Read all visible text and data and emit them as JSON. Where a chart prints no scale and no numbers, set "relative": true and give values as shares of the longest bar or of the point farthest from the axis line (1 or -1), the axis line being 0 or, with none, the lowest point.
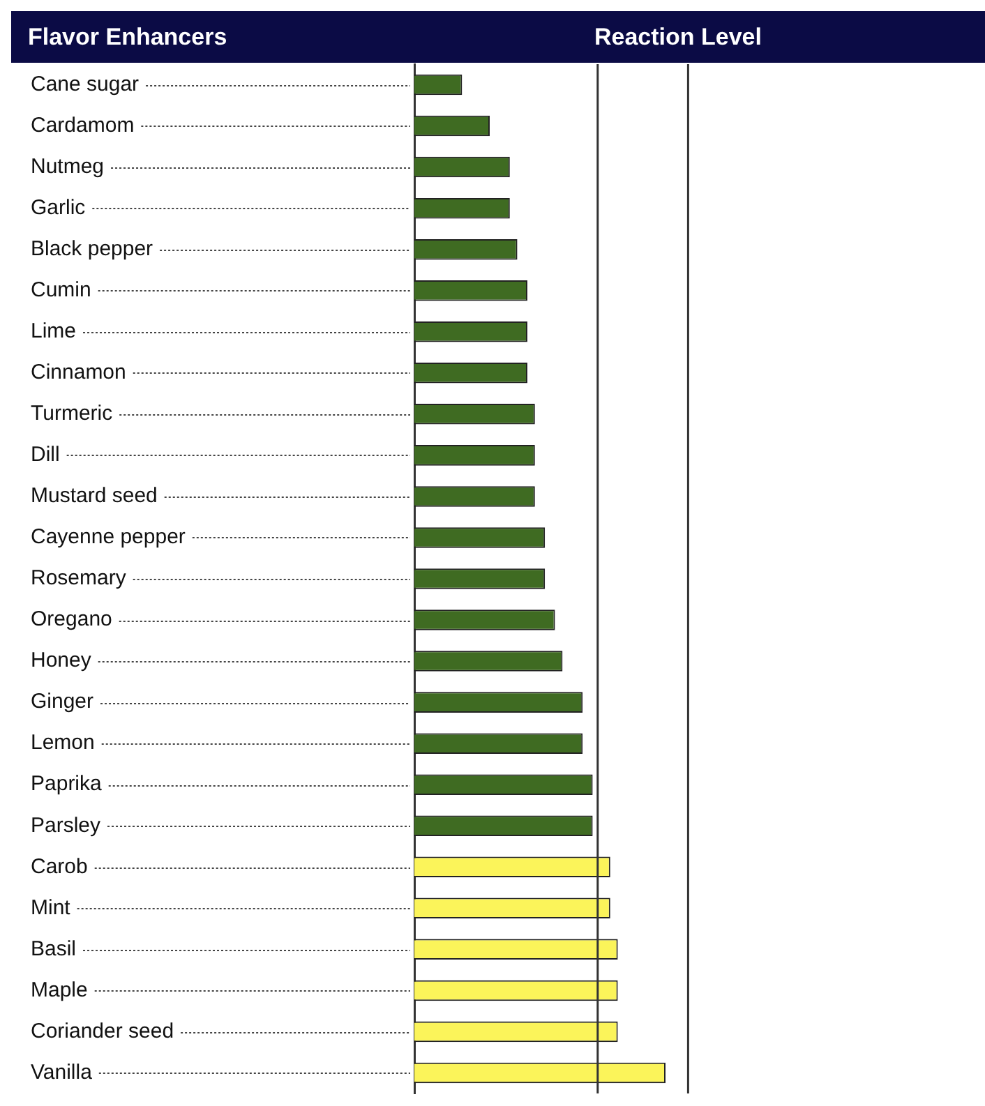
{
  "chart_data": {
    "type": "bar",
    "orientation": "horizontal",
    "relative": true,
    "xlabel": "Reaction Level",
    "ylabel": "Flavor Enhancers",
    "categories": [
      "Cane sugar",
      "Cardamom",
      "Nutmeg",
      "Garlic",
      "Black pepper",
      "Cumin",
      "Lime",
      "Cinnamon",
      "Turmeric",
      "Dill",
      "Mustard seed",
      "Cayenne pepper",
      "Rosemary",
      "Oregano",
      "Honey",
      "Ginger",
      "Lemon",
      "Paprika",
      "Parsley",
      "Carob",
      "Mint",
      "Basil",
      "Maple",
      "Coriander seed",
      "Vanilla"
    ],
    "values": [
      0.19,
      0.3,
      0.38,
      0.38,
      0.41,
      0.45,
      0.45,
      0.45,
      0.48,
      0.48,
      0.48,
      0.52,
      0.52,
      0.56,
      0.59,
      0.67,
      0.67,
      0.71,
      0.71,
      0.78,
      0.78,
      0.81,
      0.81,
      0.81,
      1
    ],
    "colors": [
      "#3f6b22",
      "#3f6b22",
      "#3f6b22",
      "#3f6b22",
      "#3f6b22",
      "#3f6b22",
      "#3f6b22",
      "#3f6b22",
      "#3f6b22",
      "#3f6b22",
      "#3f6b22",
      "#3f6b22",
      "#3f6b22",
      "#3f6b22",
      "#3f6b22",
      "#3f6b22",
      "#3f6b22",
      "#3f6b22",
      "#3f6b22",
      "#fbf45a",
      "#fbf45a",
      "#fbf45a",
      "#fbf45a",
      "#fbf45a",
      "#fbf45a"
    ],
    "ref_lines": [
      {
        "axis": "x",
        "value": 0.73,
        "color": "#333333"
      },
      {
        "axis": "x",
        "value": 1.09,
        "color": "#333333"
      }
    ]
  }
}
